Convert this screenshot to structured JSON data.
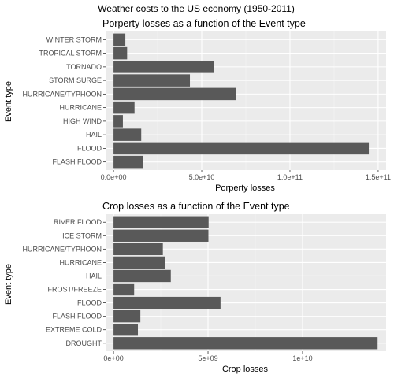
{
  "figure": {
    "title": "Weather costs to the US economy (1950-2011)"
  },
  "chart_data": [
    {
      "type": "bar",
      "orientation": "horizontal",
      "title": "Porperty losses as a function of the Event type",
      "xlabel": "Porperty losses",
      "ylabel": "Event type",
      "categories": [
        "WINTER STORM",
        "TROPICAL STORM",
        "TORNADO",
        "STORM SURGE",
        "HURRICANE/TYPHOON",
        "HURRICANE",
        "HIGH WIND",
        "HAIL",
        "FLOOD",
        "FLASH FLOOD"
      ],
      "values": [
        6700000000,
        7700000000,
        56900000000,
        43300000000,
        69300000000,
        11900000000,
        5300000000,
        15700000000,
        144700000000,
        16800000000
      ],
      "xlim": [
        0,
        150000000000
      ],
      "xticks": [
        0,
        50000000000,
        100000000000,
        150000000000
      ],
      "xtick_labels": [
        "0.0e+00",
        "5.0e+10",
        "1.0e+11",
        "1.5e+11"
      ],
      "grid": true,
      "bar_color": "#595959",
      "panel_color": "#ebebeb"
    },
    {
      "type": "bar",
      "orientation": "horizontal",
      "title": "Crop losses as a function of the Event type",
      "xlabel": "Crop losses",
      "ylabel": "Event type",
      "categories": [
        "RIVER FLOOD",
        "ICE STORM",
        "HURRICANE/TYPHOON",
        "HURRICANE",
        "HAIL",
        "FROST/FREEZE",
        "FLOOD",
        "FLASH FLOOD",
        "EXTREME COLD",
        "DROUGHT"
      ],
      "values": [
        5030000000,
        5020000000,
        2610000000,
        2740000000,
        3030000000,
        1090000000,
        5660000000,
        1420000000,
        1290000000,
        13970000000
      ],
      "xlim": [
        0,
        14000000000
      ],
      "xticks": [
        0,
        5000000000,
        10000000000
      ],
      "xtick_labels": [
        "0e+00",
        "5e+09",
        "1e+10"
      ],
      "grid": true,
      "bar_color": "#595959",
      "panel_color": "#ebebeb"
    }
  ]
}
